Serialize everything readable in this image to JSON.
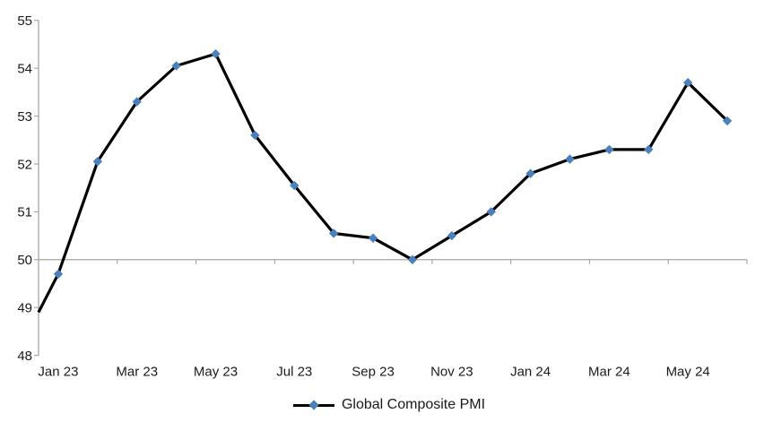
{
  "chart_data": {
    "type": "line",
    "title": "",
    "legend_label": "Global Composite PMI",
    "legend_position": "bottom",
    "series": [
      {
        "name": "Global Composite PMI",
        "values": [
          49.7,
          52.05,
          53.3,
          54.05,
          54.3,
          52.6,
          51.55,
          50.55,
          50.45,
          50.0,
          50.5,
          51.0,
          51.8,
          52.1,
          52.3,
          52.3,
          53.7,
          52.9
        ]
      }
    ],
    "categories": [
      "Jan 23",
      "Feb 23",
      "Mar 23",
      "Apr 23",
      "May 23",
      "Jun 23",
      "Jul 23",
      "Aug 23",
      "Sep 23",
      "Oct 23",
      "Nov 23",
      "Dec 23",
      "Jan 24",
      "Feb 24",
      "Mar 24",
      "Apr 24",
      "May 24",
      "Jun 24"
    ],
    "lead_in_edge_value": 48.9,
    "x_tick_labels": [
      "Jan 23",
      "Mar 23",
      "May 23",
      "Jul 23",
      "Sep 23",
      "Nov 23",
      "Jan 24",
      "Mar 24",
      "May 24"
    ],
    "y_tick_labels": [
      "48",
      "49",
      "50",
      "51",
      "52",
      "53",
      "54",
      "55"
    ],
    "y_ticks": [
      48,
      49,
      50,
      51,
      52,
      53,
      54,
      55
    ],
    "ylim": [
      48,
      55
    ],
    "x_axis_cross_value": 50,
    "grid": "off",
    "marker": "diamond",
    "colors": {
      "line": "#000000",
      "marker": "#4a80bc",
      "axis": "#a6a6a6",
      "text": "#1a1a1a",
      "background": "#ffffff"
    }
  }
}
